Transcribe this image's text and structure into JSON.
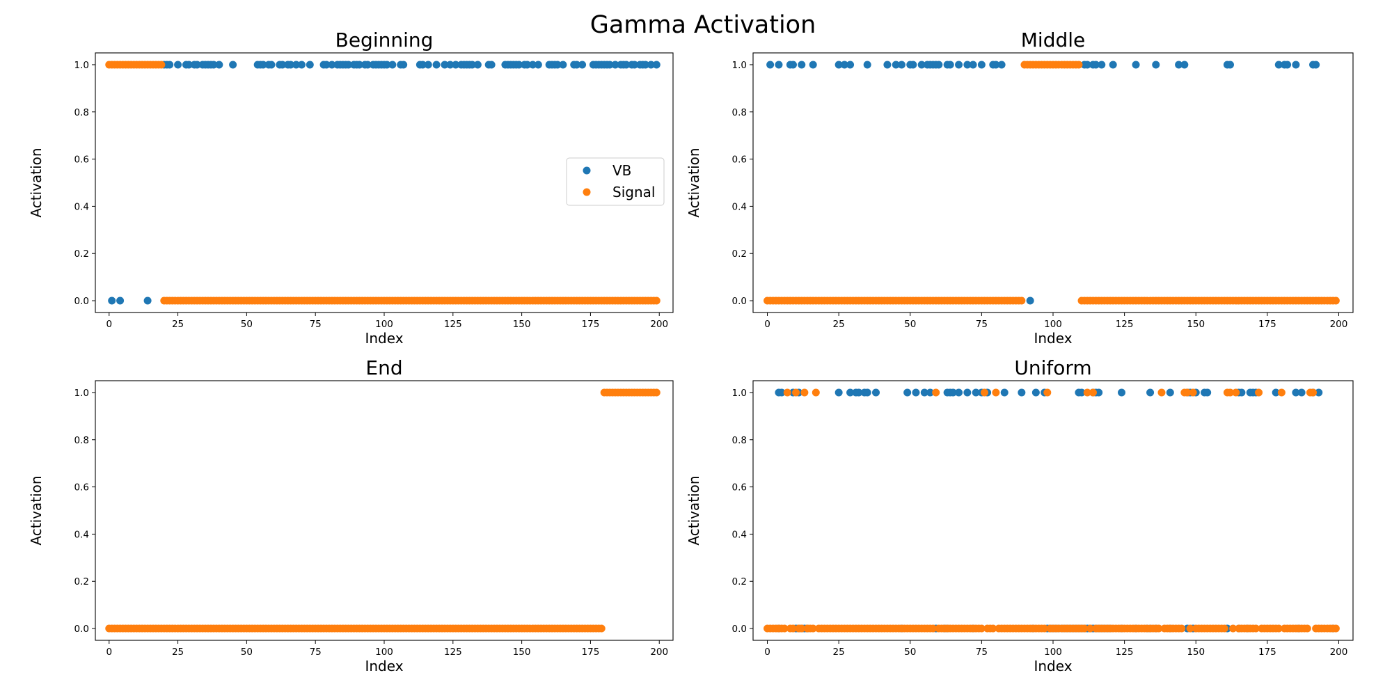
{
  "figure": {
    "title": "Gamma Activation"
  },
  "legend": {
    "placement": "center-right of Beginning panel",
    "entries": [
      {
        "label": "VB",
        "color": "#1f77b4"
      },
      {
        "label": "Signal",
        "color": "#ff7f0e"
      }
    ]
  },
  "chart_data": [
    {
      "type": "scatter",
      "title": "Beginning",
      "xlabel": "Index",
      "ylabel": "Activation",
      "xlim": [
        -5,
        205
      ],
      "ylim": [
        -0.05,
        1.05
      ],
      "xticks": [
        "0",
        "25",
        "50",
        "75",
        "100",
        "125",
        "150",
        "175",
        "200"
      ],
      "yticks": [
        "0.0",
        "0.2",
        "0.4",
        "0.6",
        "0.8",
        "1.0"
      ],
      "grid": false,
      "series": [
        {
          "name": "VB",
          "color": "#1f77b4",
          "ones": [
            20,
            21,
            22,
            25,
            28,
            29,
            31,
            32,
            34,
            35,
            36,
            37,
            38,
            40,
            45,
            54,
            55,
            56,
            58,
            59,
            62,
            63,
            65,
            66,
            68,
            70,
            73,
            78,
            79,
            81,
            83,
            84,
            85,
            86,
            87,
            89,
            90,
            91,
            93,
            94,
            96,
            97,
            98,
            99,
            100,
            101,
            103,
            106,
            107,
            113,
            114,
            116,
            119,
            122,
            124,
            126,
            128,
            129,
            130,
            131,
            132,
            134,
            138,
            139,
            144,
            145,
            146,
            147,
            148,
            149,
            151,
            152,
            154,
            156,
            160,
            161,
            162,
            163,
            165,
            169,
            170,
            172,
            176,
            177,
            178,
            179,
            180,
            181,
            182,
            184,
            186,
            187,
            188,
            190,
            191,
            193,
            194,
            195,
            197,
            199
          ],
          "zeros": [
            1,
            4,
            14
          ]
        },
        {
          "name": "Signal",
          "color": "#ff7f0e",
          "ones_ranges": [
            [
              0,
              19
            ]
          ],
          "zeros_ranges": [
            [
              20,
              199
            ]
          ]
        }
      ]
    },
    {
      "type": "scatter",
      "title": "Middle",
      "xlabel": "Index",
      "ylabel": "Activation",
      "xlim": [
        -5,
        205
      ],
      "ylim": [
        -0.05,
        1.05
      ],
      "xticks": [
        "0",
        "25",
        "50",
        "75",
        "100",
        "125",
        "150",
        "175",
        "200"
      ],
      "yticks": [
        "0.0",
        "0.2",
        "0.4",
        "0.6",
        "0.8",
        "1.0"
      ],
      "grid": false,
      "series": [
        {
          "name": "VB",
          "color": "#1f77b4",
          "ones": [
            1,
            4,
            8,
            9,
            12,
            16,
            25,
            27,
            29,
            35,
            42,
            45,
            47,
            50,
            51,
            54,
            56,
            57,
            58,
            59,
            60,
            63,
            64,
            67,
            70,
            72,
            75,
            79,
            80,
            82,
            111,
            112,
            114,
            115,
            117,
            121,
            129,
            136,
            144,
            146,
            161,
            162,
            179,
            181,
            182,
            185,
            191,
            192
          ],
          "zeros": [
            92
          ]
        },
        {
          "name": "Signal",
          "color": "#ff7f0e",
          "ones_ranges": [
            [
              90,
              109
            ]
          ],
          "zeros_ranges": [
            [
              0,
              89
            ],
            [
              110,
              199
            ]
          ]
        }
      ]
    },
    {
      "type": "scatter",
      "title": "End",
      "xlabel": "Index",
      "ylabel": "Activation",
      "xlim": [
        -5,
        205
      ],
      "ylim": [
        -0.05,
        1.05
      ],
      "xticks": [
        "0",
        "25",
        "50",
        "75",
        "100",
        "125",
        "150",
        "175",
        "200"
      ],
      "yticks": [
        "0.0",
        "0.2",
        "0.4",
        "0.6",
        "0.8",
        "1.0"
      ],
      "grid": false,
      "series": [
        {
          "name": "VB",
          "color": "#1f77b4",
          "ones": [],
          "zeros": []
        },
        {
          "name": "Signal",
          "color": "#ff7f0e",
          "ones_ranges": [
            [
              180,
              199
            ]
          ],
          "zeros_ranges": [
            [
              0,
              179
            ]
          ]
        }
      ]
    },
    {
      "type": "scatter",
      "title": "Uniform",
      "xlabel": "Index",
      "ylabel": "Activation",
      "xlim": [
        -5,
        205
      ],
      "ylim": [
        -0.05,
        1.05
      ],
      "xticks": [
        "0",
        "25",
        "50",
        "75",
        "100",
        "125",
        "150",
        "175",
        "200"
      ],
      "yticks": [
        "0.0",
        "0.2",
        "0.4",
        "0.6",
        "0.8",
        "1.0"
      ],
      "grid": false,
      "series": [
        {
          "name": "VB",
          "color": "#1f77b4",
          "ones": [
            4,
            5,
            9,
            11,
            25,
            29,
            31,
            32,
            34,
            35,
            38,
            49,
            52,
            55,
            57,
            63,
            64,
            65,
            67,
            70,
            73,
            75,
            77,
            83,
            89,
            94,
            97,
            109,
            110,
            114,
            115,
            116,
            124,
            134,
            141,
            147,
            148,
            150,
            153,
            154,
            165,
            166,
            169,
            170,
            171,
            178,
            185,
            187,
            191,
            193
          ],
          "zeros": [
            4,
            10,
            11,
            12,
            13,
            14,
            47,
            59,
            62,
            63,
            72,
            93,
            98,
            99,
            100,
            101,
            102,
            103,
            104,
            105,
            106,
            107,
            108,
            109,
            110,
            111,
            112,
            113,
            114,
            115,
            116,
            117,
            118,
            119,
            120,
            124,
            129,
            133,
            134,
            136,
            141,
            147,
            149,
            161,
            165,
            168,
            186,
            198
          ]
        },
        {
          "name": "Signal",
          "color": "#ff7f0e",
          "ones": [
            7,
            10,
            13,
            17,
            59,
            76,
            80,
            98,
            112,
            114,
            138,
            146,
            147,
            149,
            161,
            162,
            164,
            172,
            180,
            190,
            191
          ],
          "zeros_all_except": [
            7,
            10,
            13,
            17,
            59,
            76,
            80,
            98,
            112,
            114,
            138,
            146,
            147,
            149,
            161,
            162,
            164,
            172,
            180,
            190,
            191
          ]
        }
      ]
    }
  ]
}
